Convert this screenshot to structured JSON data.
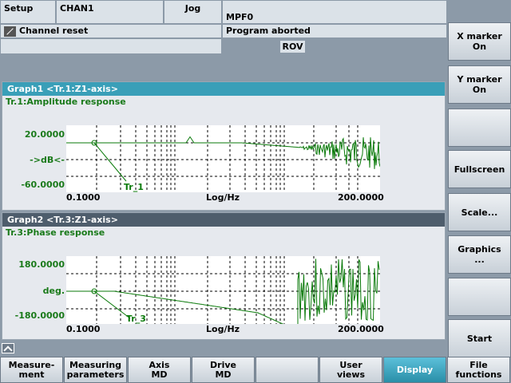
{
  "header": {
    "mode": "Setup",
    "channel": "CHAN1",
    "op_mode": "Jog",
    "program": "MPF0",
    "channel_status": "Channel reset",
    "program_status": "Program aborted",
    "rov": "ROV"
  },
  "graph1": {
    "title": "Graph1 <Tr.1:Z1-axis>",
    "subtitle": "Tr.1:Amplitude response",
    "y_top": "20.0000",
    "y_mid": "->dB<-",
    "y_bottom": "-60.0000",
    "x_left": "0.1000",
    "x_mid": "Log/Hz",
    "x_right": "200.0000",
    "trace_label": "Tr_1"
  },
  "graph2": {
    "title": "Graph2 <Tr.3:Z1-axis>",
    "subtitle": "Tr.3:Phase response",
    "y_top": "180.0000",
    "y_mid": "deg.",
    "y_bottom": "-180.0000",
    "x_left": "0.1000",
    "x_mid": "Log/Hz",
    "x_right": "200.0000",
    "trace_label": "Tr_3"
  },
  "softkeys_right": [
    "X marker\nOn",
    "Y marker\nOn",
    "",
    "Fullscreen",
    "Scale...",
    "Graphics\n...",
    "",
    "Start"
  ],
  "softkeys_bottom": [
    "Measure-\nment",
    "Measuring\nparameters",
    "Axis\nMD",
    "Drive\nMD",
    "",
    "User\nviews",
    "Display",
    "File\nfunctions"
  ],
  "trace_color": "#0a7a0a"
}
